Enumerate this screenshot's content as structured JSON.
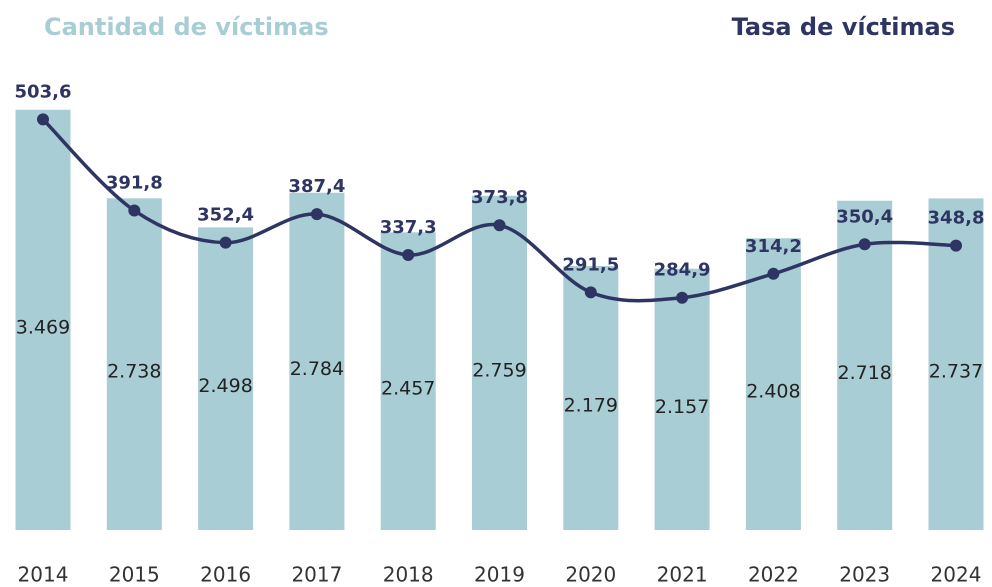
{
  "chart_data": {
    "type": "bar_line",
    "categories": [
      "2014",
      "2015",
      "2016",
      "2017",
      "2018",
      "2019",
      "2020",
      "2021",
      "2022",
      "2023",
      "2024"
    ],
    "series": [
      {
        "name": "Cantidad de víctimas",
        "type": "bar",
        "color": "#a9cdd4",
        "values": [
          3469,
          2738,
          2498,
          2784,
          2457,
          2759,
          2179,
          2157,
          2408,
          2718,
          2737
        ],
        "value_labels": [
          "3.469",
          "2.738",
          "2.498",
          "2.784",
          "2.457",
          "2.759",
          "2.179",
          "2.157",
          "2.408",
          "2.718",
          "2.737"
        ]
      },
      {
        "name": "Tasa de víctimas",
        "type": "line",
        "axis": "y2",
        "color": "#2e3563",
        "values": [
          503.6,
          391.8,
          352.4,
          387.4,
          337.3,
          373.8,
          291.5,
          284.9,
          314.2,
          350.4,
          348.8
        ],
        "value_labels": [
          "503,6",
          "391,8",
          "352,4",
          "387,4",
          "337,3",
          "373,8",
          "291,5",
          "284,9",
          "314,2",
          "350,4",
          "348,8"
        ]
      }
    ],
    "ylim": [
      0,
      3500
    ],
    "y2lim": [
      0,
      520
    ]
  }
}
